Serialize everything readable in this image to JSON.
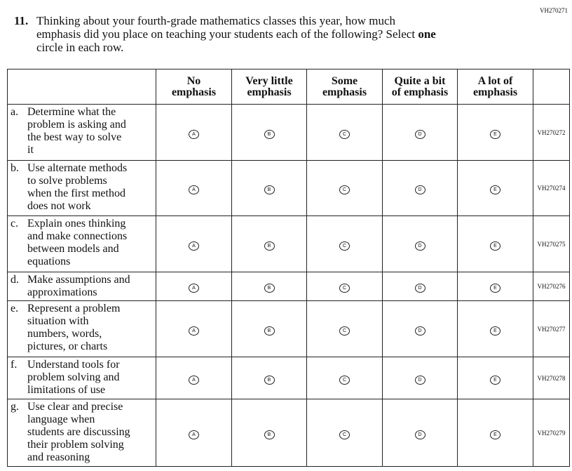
{
  "code": "VH270271",
  "question": {
    "number": "11.",
    "lines": [
      "Thinking about your fourth-grade mathematics classes this year, how much",
      "emphasis did you place on teaching your students each of the following? Select",
      "circle in each row."
    ],
    "bold": "one"
  },
  "table": {
    "columns": [
      [
        "No",
        "emphasis"
      ],
      [
        "Very little",
        "emphasis"
      ],
      [
        "Some",
        "emphasis"
      ],
      [
        "Quite a bit",
        "of emphasis"
      ],
      [
        "A lot of",
        "emphasis"
      ]
    ],
    "rows": [
      {
        "label": "a.",
        "lines": [
          "Determine what the",
          "problem is asking and",
          "the best way to solve",
          "it"
        ],
        "choices": [
          "A",
          "B",
          "C",
          "D",
          "E"
        ],
        "code": "VH270272"
      },
      {
        "label": "b.",
        "lines": [
          "Use alternate methods",
          "to solve problems",
          "when the first method",
          "does not work"
        ],
        "choices": [
          "A",
          "B",
          "C",
          "D",
          "E"
        ],
        "code": "VH270274"
      },
      {
        "label": "c.",
        "lines": [
          "Explain ones thinking",
          "and make connections",
          "between models and",
          "equations"
        ],
        "choices": [
          "A",
          "B",
          "C",
          "D",
          "E"
        ],
        "code": "VH270275"
      },
      {
        "label": "d.",
        "lines": [
          "Make assumptions and",
          "approximations"
        ],
        "choices": [
          "A",
          "B",
          "C",
          "D",
          "E"
        ],
        "code": "VH270276"
      },
      {
        "label": "e.",
        "lines": [
          "Represent a problem",
          "situation with",
          "numbers, words,",
          "pictures, or charts"
        ],
        "choices": [
          "A",
          "B",
          "C",
          "D",
          "E"
        ],
        "code": "VH270277"
      },
      {
        "label": "f.",
        "lines": [
          "Understand tools for",
          "problem solving and",
          "limitations of use"
        ],
        "choices": [
          "A",
          "B",
          "C",
          "D",
          "E"
        ],
        "code": "VH270278"
      },
      {
        "label": "g.",
        "lines": [
          "Use clear and precise",
          "language when",
          "students are discussing",
          "their problem solving",
          "and reasoning"
        ],
        "choices": [
          "A",
          "B",
          "C",
          "D",
          "E"
        ],
        "code": "VH270279"
      }
    ]
  }
}
